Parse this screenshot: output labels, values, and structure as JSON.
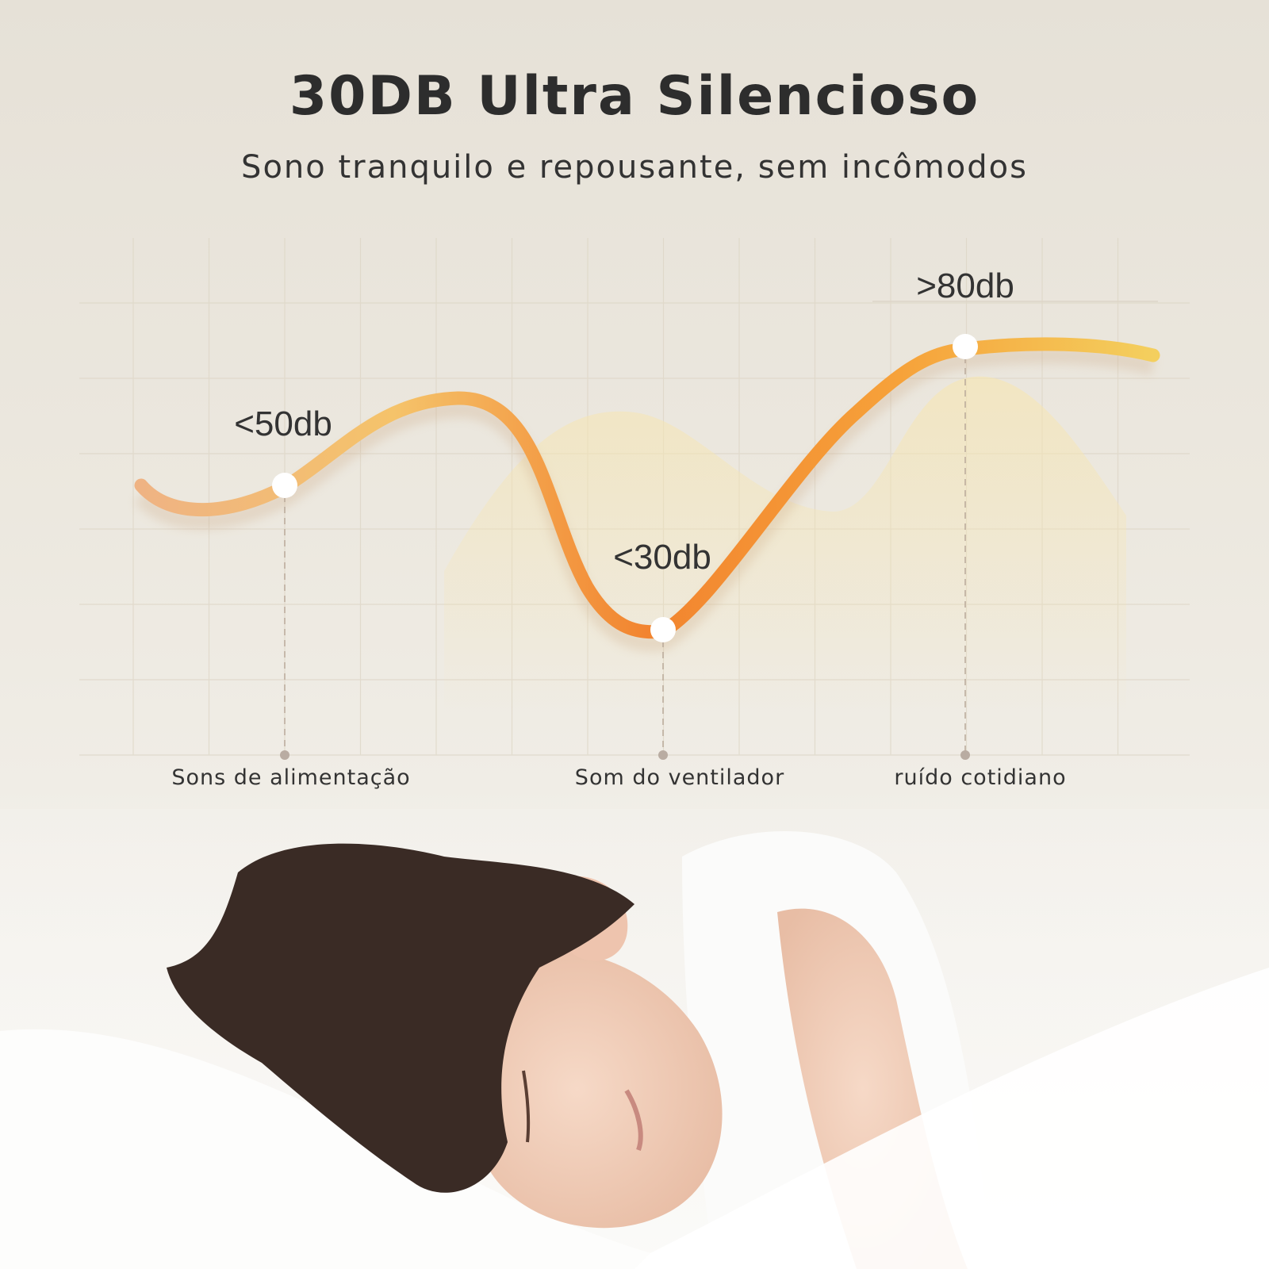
{
  "header": {
    "title": "30DB Ultra Silencioso",
    "subtitle": "Sono tranquilo e repousante, sem incômodos"
  },
  "chart": {
    "points": [
      {
        "value_label": "<50db",
        "category": "Sons de alimentação"
      },
      {
        "value_label": "<30db",
        "category": "Som do ventilador"
      },
      {
        "value_label": ">80db",
        "category": "ruído cotidiano"
      }
    ],
    "colors": {
      "curve_start": "#f0b27a",
      "curve_mid": "#f2842f",
      "curve_end": "#f6cf55",
      "marker": "#ffffff"
    }
  },
  "photo": {
    "subject": "sleeping child on white bedding"
  }
}
